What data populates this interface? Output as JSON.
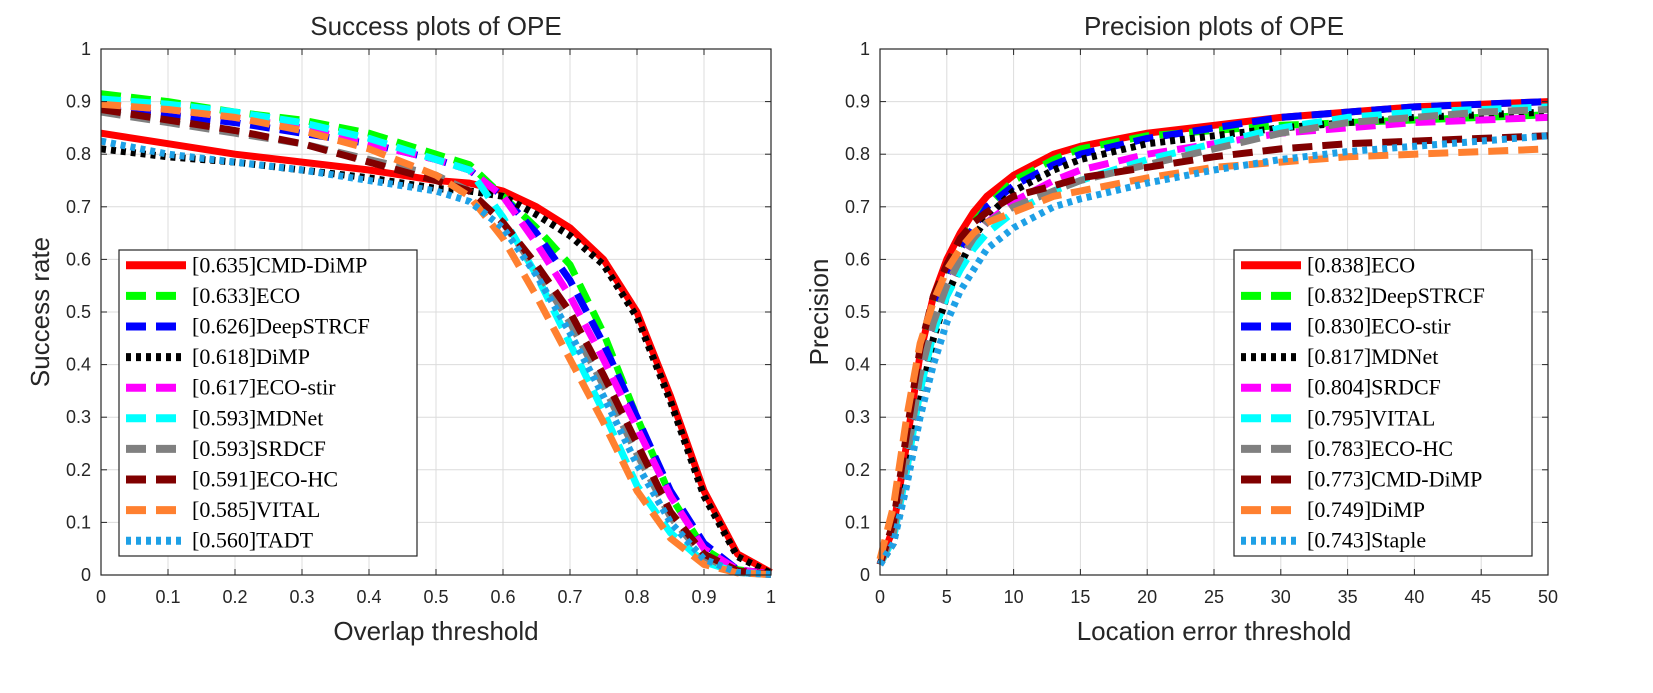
{
  "chart_data": [
    {
      "type": "line",
      "title": "Success plots of OPE",
      "xlabel": "Overlap threshold",
      "ylabel": "Success rate",
      "xlim": [
        0,
        1
      ],
      "ylim": [
        0,
        1
      ],
      "xticks": [
        "0",
        "0.1",
        "0.2",
        "0.3",
        "0.4",
        "0.5",
        "0.6",
        "0.7",
        "0.8",
        "0.9",
        "1"
      ],
      "yticks": [
        "0",
        "0.1",
        "0.2",
        "0.3",
        "0.4",
        "0.5",
        "0.6",
        "0.7",
        "0.8",
        "0.9",
        "1"
      ],
      "grid": true,
      "legend_position": "bottom-left",
      "x": [
        0,
        0.1,
        0.2,
        0.3,
        0.4,
        0.5,
        0.55,
        0.6,
        0.65,
        0.7,
        0.75,
        0.8,
        0.85,
        0.9,
        0.95,
        1.0
      ],
      "series": [
        {
          "name": "[0.635]CMD-DiMP",
          "color": "#ff0000",
          "style": "solid",
          "values": [
            0.84,
            0.82,
            0.8,
            0.785,
            0.77,
            0.75,
            0.745,
            0.73,
            0.7,
            0.66,
            0.6,
            0.5,
            0.34,
            0.16,
            0.04,
            0.005
          ]
        },
        {
          "name": "[0.633]ECO",
          "color": "#00ff00",
          "style": "dash",
          "values": [
            0.915,
            0.9,
            0.88,
            0.865,
            0.84,
            0.8,
            0.78,
            0.72,
            0.66,
            0.59,
            0.46,
            0.3,
            0.15,
            0.05,
            0.01,
            0.002
          ]
        },
        {
          "name": "[0.626]DeepSTRCF",
          "color": "#0000ff",
          "style": "dash",
          "values": [
            0.885,
            0.875,
            0.86,
            0.84,
            0.82,
            0.79,
            0.77,
            0.72,
            0.65,
            0.56,
            0.44,
            0.3,
            0.16,
            0.06,
            0.01,
            0.002
          ]
        },
        {
          "name": "[0.618]DiMP",
          "color": "#000000",
          "style": "dot",
          "values": [
            0.81,
            0.795,
            0.785,
            0.77,
            0.755,
            0.735,
            0.73,
            0.72,
            0.685,
            0.645,
            0.59,
            0.49,
            0.33,
            0.15,
            0.035,
            0.003
          ]
        },
        {
          "name": "[0.617]ECO-stir",
          "color": "#ff00ff",
          "style": "dash",
          "values": [
            0.895,
            0.885,
            0.87,
            0.85,
            0.82,
            0.79,
            0.77,
            0.72,
            0.63,
            0.53,
            0.41,
            0.28,
            0.15,
            0.05,
            0.01,
            0.002
          ]
        },
        {
          "name": "[0.593]MDNet",
          "color": "#00ffff",
          "style": "dash",
          "values": [
            0.905,
            0.895,
            0.88,
            0.86,
            0.83,
            0.79,
            0.77,
            0.68,
            0.57,
            0.44,
            0.31,
            0.17,
            0.08,
            0.025,
            0.005,
            0.001
          ]
        },
        {
          "name": "[0.593]SRDCF",
          "color": "#808080",
          "style": "dash",
          "values": [
            0.88,
            0.86,
            0.84,
            0.82,
            0.79,
            0.76,
            0.73,
            0.67,
            0.58,
            0.48,
            0.36,
            0.23,
            0.11,
            0.035,
            0.005,
            0.001
          ]
        },
        {
          "name": "[0.591]ECO-HC",
          "color": "#800000",
          "style": "dash",
          "values": [
            0.885,
            0.865,
            0.845,
            0.82,
            0.785,
            0.75,
            0.73,
            0.67,
            0.59,
            0.5,
            0.38,
            0.25,
            0.12,
            0.04,
            0.008,
            0.001
          ]
        },
        {
          "name": "[0.585]VITAL",
          "color": "#ff8030",
          "style": "dash",
          "values": [
            0.895,
            0.885,
            0.87,
            0.845,
            0.81,
            0.76,
            0.72,
            0.64,
            0.53,
            0.41,
            0.29,
            0.16,
            0.07,
            0.02,
            0.004,
            0.001
          ]
        },
        {
          "name": "[0.560]TADT",
          "color": "#1ea0e6",
          "style": "dot",
          "values": [
            0.825,
            0.8,
            0.785,
            0.77,
            0.75,
            0.73,
            0.71,
            0.66,
            0.57,
            0.46,
            0.34,
            0.21,
            0.1,
            0.03,
            0.005,
            0.001
          ]
        }
      ]
    },
    {
      "type": "line",
      "title": "Precision plots of OPE",
      "xlabel": "Location error threshold",
      "ylabel": "Precision",
      "xlim": [
        0,
        50
      ],
      "ylim": [
        0,
        1
      ],
      "xticks": [
        "0",
        "5",
        "10",
        "15",
        "20",
        "25",
        "30",
        "35",
        "40",
        "45",
        "50"
      ],
      "yticks": [
        "0",
        "0.1",
        "0.2",
        "0.3",
        "0.4",
        "0.5",
        "0.6",
        "0.7",
        "0.8",
        "0.9",
        "1"
      ],
      "grid": true,
      "legend_position": "bottom-right",
      "x": [
        0,
        1,
        2,
        3,
        4,
        5,
        6,
        7,
        8,
        10,
        13,
        15,
        20,
        25,
        30,
        35,
        40,
        45,
        50
      ],
      "series": [
        {
          "name": "[0.838]ECO",
          "color": "#ff0000",
          "style": "solid",
          "values": [
            0.02,
            0.09,
            0.25,
            0.42,
            0.53,
            0.6,
            0.65,
            0.69,
            0.72,
            0.76,
            0.8,
            0.815,
            0.84,
            0.855,
            0.87,
            0.88,
            0.89,
            0.895,
            0.9
          ]
        },
        {
          "name": "[0.832]DeepSTRCF",
          "color": "#00ff00",
          "style": "dash",
          "values": [
            0.02,
            0.08,
            0.23,
            0.4,
            0.51,
            0.58,
            0.63,
            0.67,
            0.7,
            0.75,
            0.79,
            0.81,
            0.835,
            0.845,
            0.855,
            0.86,
            0.865,
            0.87,
            0.875
          ]
        },
        {
          "name": "[0.830]ECO-stir",
          "color": "#0000ff",
          "style": "dash",
          "values": [
            0.02,
            0.08,
            0.22,
            0.38,
            0.49,
            0.57,
            0.62,
            0.66,
            0.7,
            0.74,
            0.78,
            0.8,
            0.83,
            0.85,
            0.87,
            0.88,
            0.89,
            0.895,
            0.9
          ]
        },
        {
          "name": "[0.817]MDNet",
          "color": "#000000",
          "style": "dot",
          "values": [
            0.02,
            0.06,
            0.18,
            0.33,
            0.45,
            0.53,
            0.59,
            0.64,
            0.68,
            0.73,
            0.77,
            0.79,
            0.82,
            0.835,
            0.85,
            0.86,
            0.87,
            0.875,
            0.88
          ]
        },
        {
          "name": "[0.804]SRDCF",
          "color": "#ff00ff",
          "style": "dash",
          "values": [
            0.02,
            0.07,
            0.2,
            0.36,
            0.47,
            0.55,
            0.6,
            0.64,
            0.67,
            0.71,
            0.75,
            0.77,
            0.8,
            0.82,
            0.84,
            0.85,
            0.86,
            0.865,
            0.87
          ]
        },
        {
          "name": "[0.795]VITAL",
          "color": "#00ffff",
          "style": "dash",
          "values": [
            0.02,
            0.07,
            0.2,
            0.35,
            0.46,
            0.53,
            0.58,
            0.62,
            0.65,
            0.69,
            0.73,
            0.75,
            0.79,
            0.82,
            0.85,
            0.87,
            0.88,
            0.885,
            0.89
          ]
        },
        {
          "name": "[0.783]ECO-HC",
          "color": "#808080",
          "style": "dash",
          "values": [
            0.02,
            0.08,
            0.22,
            0.38,
            0.48,
            0.55,
            0.6,
            0.64,
            0.67,
            0.7,
            0.73,
            0.75,
            0.78,
            0.81,
            0.84,
            0.86,
            0.87,
            0.88,
            0.885
          ]
        },
        {
          "name": "[0.773]CMD-DiMP",
          "color": "#800000",
          "style": "dash",
          "values": [
            0.02,
            0.1,
            0.27,
            0.43,
            0.53,
            0.59,
            0.64,
            0.67,
            0.69,
            0.72,
            0.74,
            0.755,
            0.775,
            0.795,
            0.81,
            0.82,
            0.825,
            0.83,
            0.835
          ]
        },
        {
          "name": "[0.749]DiMP",
          "color": "#ff8030",
          "style": "dash",
          "values": [
            0.03,
            0.13,
            0.3,
            0.44,
            0.52,
            0.58,
            0.62,
            0.65,
            0.67,
            0.69,
            0.72,
            0.73,
            0.755,
            0.775,
            0.785,
            0.795,
            0.8,
            0.805,
            0.81
          ]
        },
        {
          "name": "[0.743]Staple",
          "color": "#1ea0e6",
          "style": "dot",
          "values": [
            0.02,
            0.06,
            0.17,
            0.3,
            0.4,
            0.48,
            0.54,
            0.58,
            0.62,
            0.66,
            0.7,
            0.715,
            0.745,
            0.77,
            0.79,
            0.805,
            0.815,
            0.825,
            0.835
          ]
        }
      ]
    }
  ]
}
